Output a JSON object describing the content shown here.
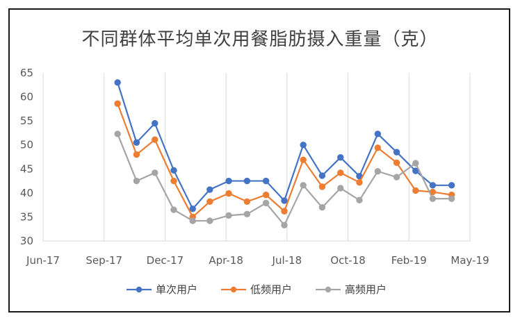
{
  "chart_data": {
    "type": "line",
    "title": "不同群体平均单次用餐脂肪摄入重量（克）",
    "xlabel": "",
    "ylabel": "",
    "ylim": [
      30,
      65
    ],
    "yticks": [
      30,
      35,
      40,
      45,
      50,
      55,
      60,
      65
    ],
    "xticks": [
      "Jun-17",
      "Sep-17",
      "Dec-17",
      "Apr-18",
      "Jul-18",
      "Oct-18",
      "Feb-19",
      "May-19"
    ],
    "grid": "vertical",
    "legend_position": "bottom",
    "x": [
      "2017-10-01",
      "2017-11-01",
      "2017-12-01",
      "2018-01-01",
      "2018-02-01",
      "2018-03-01",
      "2018-04-01",
      "2018-05-01",
      "2018-06-01",
      "2018-07-01",
      "2018-08-01",
      "2018-09-01",
      "2018-10-01",
      "2018-11-01",
      "2018-12-01",
      "2019-01-01",
      "2019-02-01",
      "2019-03-01",
      "2019-04-01"
    ],
    "series": [
      {
        "name": "单次用户",
        "color": "#4472C4",
        "values": [
          63,
          50.5,
          54.5,
          44.7,
          36.7,
          40.7,
          42.5,
          42.5,
          42.5,
          38.4,
          50,
          43.6,
          47.4,
          43.5,
          52.3,
          48.5,
          44.6,
          41.6,
          41.6
        ]
      },
      {
        "name": "低频用户",
        "color": "#ED7D31",
        "values": [
          58.6,
          48,
          51.1,
          42.5,
          35,
          38.2,
          39.9,
          38.2,
          39.6,
          36.2,
          46.9,
          41.3,
          44.2,
          42.2,
          49.4,
          46.3,
          40.5,
          40.2,
          39.6
        ]
      },
      {
        "name": "高频用户",
        "color": "#A5A5A5",
        "values": [
          52.3,
          42.5,
          44.2,
          36.5,
          34.2,
          34.2,
          35.3,
          35.6,
          37.9,
          33.3,
          41.6,
          37,
          41,
          38.5,
          44.5,
          43.3,
          46.2,
          38.8,
          38.8
        ]
      }
    ]
  }
}
